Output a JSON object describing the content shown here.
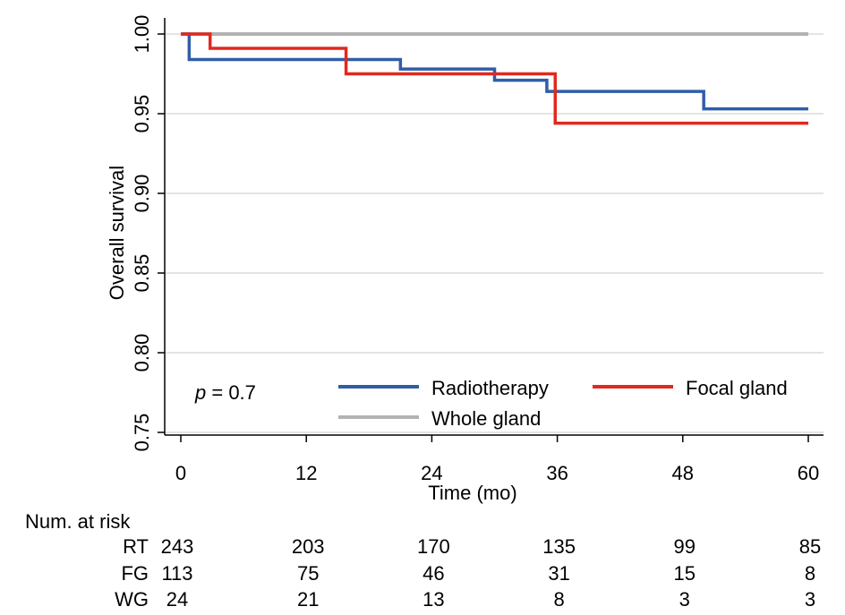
{
  "chart_data": {
    "type": "line",
    "subtype": "kaplan-meier-step",
    "title": "",
    "xlabel": "Time (mo)",
    "ylabel": "Overall survival",
    "xlim": [
      0,
      60
    ],
    "ylim": [
      0.75,
      1.0
    ],
    "x_ticks": [
      0,
      12,
      24,
      36,
      48,
      60
    ],
    "y_ticks": [
      0.75,
      0.8,
      0.85,
      0.9,
      0.95,
      1.0
    ],
    "x_tick_labels": [
      "0",
      "12",
      "24",
      "36",
      "48",
      "60"
    ],
    "y_tick_labels": [
      "0.75",
      "0.80",
      "0.85",
      "0.90",
      "0.95",
      "1.00"
    ],
    "grid": "horizontal",
    "legend_position": "bottom-right",
    "annotation": {
      "italic": "p",
      "rest": " = 0.7"
    },
    "series": [
      {
        "name": "Radiotherapy",
        "color": "#2f5ea8",
        "steps": [
          [
            0,
            1.0
          ],
          [
            0.8,
            0.984
          ],
          [
            21,
            0.978
          ],
          [
            30,
            0.971
          ],
          [
            35,
            0.964
          ],
          [
            50,
            0.953
          ],
          [
            60,
            0.953
          ]
        ]
      },
      {
        "name": "Focal gland",
        "color": "#e0291f",
        "steps": [
          [
            0,
            1.0
          ],
          [
            2.8,
            0.991
          ],
          [
            15.8,
            0.975
          ],
          [
            35.8,
            0.944
          ],
          [
            60,
            0.944
          ]
        ]
      },
      {
        "name": "Whole gland",
        "color": "#b3b3b3",
        "steps": [
          [
            0,
            1.0
          ],
          [
            60,
            1.0
          ]
        ]
      }
    ],
    "risk_table": {
      "title": "Num. at risk",
      "rows": [
        {
          "label": "RT",
          "values": [
            "243",
            "203",
            "170",
            "135",
            "99",
            "85"
          ]
        },
        {
          "label": "FG",
          "values": [
            "113",
            "75",
            "46",
            "31",
            "15",
            "8"
          ]
        },
        {
          "label": "WG",
          "values": [
            "24",
            "21",
            "13",
            "8",
            "3",
            "3"
          ]
        }
      ]
    }
  }
}
